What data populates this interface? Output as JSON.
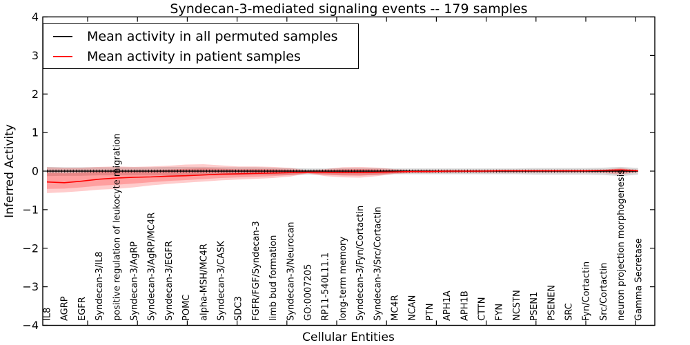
{
  "chart_data": {
    "type": "line",
    "title": "Syndecan-3-mediated signaling events -- 179 samples",
    "xlabel": "Cellular Entities",
    "ylabel": "Inferred Activity",
    "ylim": [
      -4,
      4
    ],
    "yticks": [
      4,
      3,
      2,
      1,
      0,
      -1,
      -2,
      -3,
      -4
    ],
    "grid": false,
    "legend_position": "upper left",
    "categories": [
      "IL8",
      "AGRP",
      "EGFR",
      "Syndecan-3/IL8",
      "positive regulation of leukocyte migration",
      "Syndecan-3/AgRP",
      "Syndecan-3/AgRP/MC4R",
      "Syndecan-3/EGFR",
      "POMC",
      "alpha-MSH/MC4R",
      "Syndecan-3/CASK",
      "SDC3",
      "FGFR/FGF/Syndecan-3",
      "limb bud formation",
      "Syndecan-3/Neurocan",
      "GO:0007205",
      "RP11-540L11.1",
      "long-term memory",
      "Syndecan-3/Fyn/Cortactin",
      "Syndecan-3/Src/Cortactin",
      "MC4R",
      "NCAN",
      "PTN",
      "APH1A",
      "APH1B",
      "CTTN",
      "FYN",
      "NCSTN",
      "PSEN1",
      "PSENEN",
      "SRC",
      "Fyn/Cortactin",
      "Src/Cortactin",
      "neuron projection morphogenesis",
      "Gamma Secretase"
    ],
    "series": [
      {
        "name": "Mean activity in all permuted samples",
        "color": "#000000",
        "style": "solid line with dense sample tick marks",
        "values": [
          0,
          0,
          0,
          0,
          0,
          0,
          0,
          0,
          0,
          0,
          0,
          0,
          0,
          0,
          0,
          0,
          0,
          0,
          0,
          0,
          0,
          0,
          0,
          0,
          0,
          0,
          0,
          0,
          0,
          0,
          0,
          0,
          0,
          0,
          0
        ]
      },
      {
        "name": "Mean activity in patient samples",
        "color": "#ff0000",
        "style": "solid line",
        "values": [
          -0.28,
          -0.3,
          -0.26,
          -0.21,
          -0.18,
          -0.16,
          -0.15,
          -0.13,
          -0.12,
          -0.1,
          -0.08,
          -0.07,
          -0.06,
          -0.05,
          -0.04,
          -0.03,
          -0.03,
          -0.04,
          -0.04,
          -0.03,
          -0.02,
          -0.01,
          -0.01,
          0.0,
          0.0,
          0.0,
          0.01,
          0.01,
          0.01,
          0.01,
          0.01,
          0.01,
          0.02,
          0.03,
          0.01
        ]
      }
    ],
    "bands": [
      {
        "name": "permuted samples activity envelope",
        "color": "#888888",
        "opacity": 0.32,
        "upper": [
          0.11,
          0.1,
          0.1,
          0.1,
          0.1,
          0.1,
          0.1,
          0.11,
          0.11,
          0.11,
          0.1,
          0.1,
          0.1,
          0.09,
          0.08,
          0.07,
          0.07,
          0.08,
          0.08,
          0.08,
          0.07,
          0.07,
          0.07,
          0.07,
          0.07,
          0.07,
          0.07,
          0.07,
          0.08,
          0.08,
          0.08,
          0.08,
          0.09,
          0.11,
          0.08
        ],
        "lower": [
          -0.13,
          -0.12,
          -0.12,
          -0.11,
          -0.11,
          -0.11,
          -0.11,
          -0.11,
          -0.11,
          -0.11,
          -0.1,
          -0.1,
          -0.1,
          -0.1,
          -0.1,
          -0.09,
          -0.09,
          -0.1,
          -0.1,
          -0.1,
          -0.08,
          -0.08,
          -0.08,
          -0.08,
          -0.08,
          -0.08,
          -0.08,
          -0.08,
          -0.09,
          -0.09,
          -0.09,
          -0.09,
          -0.1,
          -0.13,
          -0.09
        ]
      },
      {
        "name": "patient samples activity envelope",
        "color": "#ff0000",
        "opacity": 0.2,
        "inner_fraction": 0.62,
        "inner_opacity": 0.22,
        "upper": [
          0.1,
          0.09,
          0.09,
          0.11,
          0.12,
          0.11,
          0.12,
          0.14,
          0.17,
          0.18,
          0.15,
          0.12,
          0.12,
          0.11,
          0.08,
          0.02,
          0.05,
          0.1,
          0.11,
          0.09,
          0.05,
          0.03,
          0.03,
          0.03,
          0.03,
          0.03,
          0.03,
          0.03,
          0.03,
          0.03,
          0.03,
          0.03,
          0.04,
          0.08,
          0.03
        ],
        "lower": [
          -0.57,
          -0.55,
          -0.52,
          -0.48,
          -0.46,
          -0.42,
          -0.37,
          -0.33,
          -0.3,
          -0.27,
          -0.24,
          -0.22,
          -0.2,
          -0.18,
          -0.14,
          -0.06,
          -0.13,
          -0.16,
          -0.17,
          -0.13,
          -0.07,
          -0.05,
          -0.05,
          -0.05,
          -0.04,
          -0.04,
          -0.04,
          -0.04,
          -0.04,
          -0.04,
          -0.04,
          -0.04,
          -0.05,
          -0.09,
          -0.03
        ]
      }
    ]
  }
}
